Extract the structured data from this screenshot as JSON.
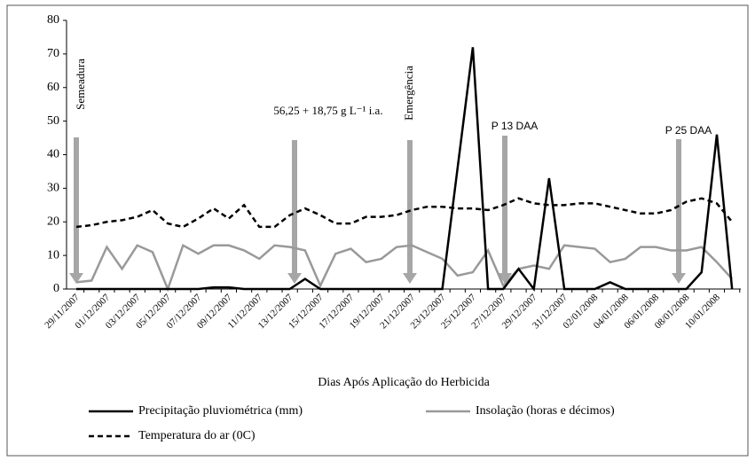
{
  "chart_data": {
    "type": "line",
    "x_label": "Dias Após Aplicação do Herbicida",
    "categories": [
      "29/11/2007",
      null,
      "01/12/2007",
      null,
      "03/12/2007",
      null,
      "05/12/2007",
      null,
      "07/12/2007",
      null,
      "09/12/2007",
      null,
      "11/12/2007",
      null,
      "13/12/2007",
      null,
      "15/12/2007",
      null,
      "17/12/2007",
      null,
      "19/12/2007",
      null,
      "21/12/2007",
      null,
      "23/12/2007",
      null,
      "25/12/2007",
      null,
      "27/12/2007",
      null,
      "29/12/2007",
      null,
      "31/12/2007",
      null,
      "02/01/2008",
      null,
      "04/01/2008",
      null,
      "06/01/2008",
      null,
      "08/01/2008",
      null,
      "10/01/2008",
      null
    ],
    "ylim": [
      0,
      80
    ],
    "yticks": [
      0,
      10,
      20,
      30,
      40,
      50,
      60,
      70,
      80
    ],
    "series": [
      {
        "name": "Precipitação pluviométrica (mm)",
        "color": "#000000",
        "style": "solid",
        "values": [
          0,
          0,
          0,
          0,
          0,
          0,
          0,
          0,
          0,
          0.5,
          0.5,
          0,
          0,
          0,
          0,
          3,
          0,
          0,
          0,
          0,
          0,
          0,
          0,
          0,
          0,
          36,
          72,
          0,
          0,
          6,
          0,
          33,
          0,
          0,
          0,
          2,
          0,
          0,
          0,
          0,
          0,
          5,
          46,
          0
        ]
      },
      {
        "name": "Insolação (horas e décimos)",
        "color": "#999999",
        "style": "solid",
        "values": [
          2,
          2.5,
          12.5,
          6,
          13,
          11,
          0,
          13,
          10.5,
          13,
          13,
          11.5,
          9,
          13,
          12.5,
          11.5,
          1,
          10.5,
          12,
          8,
          9,
          12.5,
          13,
          11,
          9,
          4,
          5,
          11.5,
          1,
          6,
          7,
          6,
          13,
          12.5,
          12,
          8,
          9,
          12.5,
          12.5,
          11.5,
          11.5,
          12.5,
          8,
          3
        ]
      },
      {
        "name": "Temperatura do ar (0C)",
        "color": "#000000",
        "style": "dashed",
        "values": [
          18.5,
          19,
          20,
          20.5,
          21.5,
          23.5,
          19.5,
          18.5,
          21,
          24,
          21,
          25,
          18.5,
          18.5,
          22,
          24,
          22,
          19.5,
          19.5,
          21.5,
          21.5,
          22,
          23.5,
          24.5,
          24.5,
          24,
          24,
          23.5,
          25,
          27,
          25.5,
          25,
          25,
          25.5,
          25.5,
          24.5,
          23.5,
          22.5,
          22.5,
          23.5,
          26,
          27,
          25.5,
          20
        ]
      }
    ],
    "annotations": [
      "Semeadura",
      "56,25 + 18,75 g L⁻¹ i.a.",
      "Emergência",
      "P 13 DAA",
      "P 25 DAA"
    ]
  }
}
